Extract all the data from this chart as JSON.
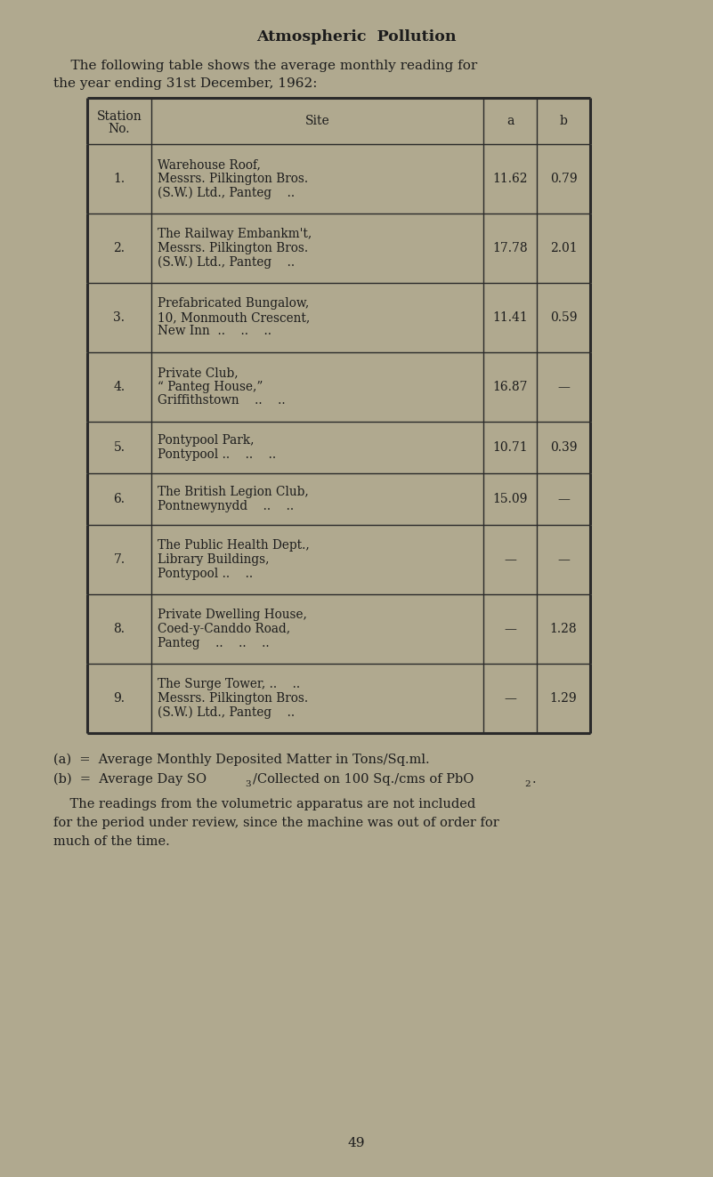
{
  "title": "Atmospheric  Pollution",
  "intro_line1": "    The following table shows the average monthly reading for",
  "intro_line2": "the year ending 31st December, 1962:",
  "rows": [
    {
      "num": "1.",
      "site_lines": [
        "Warehouse Roof,",
        "Messrs. Pilkington Bros.",
        "(S.W.) Ltd., Panteg    .."
      ],
      "a": "11.62",
      "b": "0.79"
    },
    {
      "num": "2.",
      "site_lines": [
        "The Railway Embankm't,",
        "Messrs. Pilkington Bros.",
        "(S.W.) Ltd., Panteg    .."
      ],
      "a": "17.78",
      "b": "2.01"
    },
    {
      "num": "3.",
      "site_lines": [
        "Prefabricated Bungalow,",
        "10, Monmouth Crescent,",
        "New Inn  ..    ..    .."
      ],
      "a": "11.41",
      "b": "0.59"
    },
    {
      "num": "4.",
      "site_lines": [
        "Private Club,",
        "“ Panteg House,”",
        "Griffithstown    ..    .."
      ],
      "a": "16.87",
      "b": "—"
    },
    {
      "num": "5.",
      "site_lines": [
        "Pontypool Park,",
        "Pontypool ..    ..    .."
      ],
      "a": "10.71",
      "b": "0.39"
    },
    {
      "num": "6.",
      "site_lines": [
        "The British Legion Club,",
        "Pontnewynydd    ..    .."
      ],
      "a": "15.09",
      "b": "—"
    },
    {
      "num": "7.",
      "site_lines": [
        "The Public Health Dept.,",
        "Library Buildings,",
        "Pontypool ..    .."
      ],
      "a": "—",
      "b": "—"
    },
    {
      "num": "8.",
      "site_lines": [
        "Private Dwelling House,",
        "Coed-y-Canddo Road,",
        "Panteg    ..    ..    .."
      ],
      "a": "—",
      "b": "1.28"
    },
    {
      "num": "9.",
      "site_lines": [
        "The Surge Tower, ..    ..",
        "Messrs. Pilkington Bros.",
        "(S.W.) Ltd., Panteg    .."
      ],
      "a": "—",
      "b": "1.29"
    }
  ],
  "footnote_a": "(a)  =  Average Monthly Deposited Matter in Tons/Sq.ml.",
  "footnote_b_pre": "(b)  =  Average Day SO",
  "footnote_b_sub": "3",
  "footnote_b_post": "/Collected on 100 Sq./cms of PbO",
  "footnote_b_sub2": "2",
  "footnote_b_end": ".",
  "footnote_extra_lines": [
    "    The readings from the volumetric apparatus are not included",
    "for the period under review, since the machine was out of order for",
    "much of the time."
  ],
  "page_num": "49",
  "bg_color": "#b0a98f",
  "text_color": "#1c1c1c",
  "line_color": "#2a2a2a"
}
